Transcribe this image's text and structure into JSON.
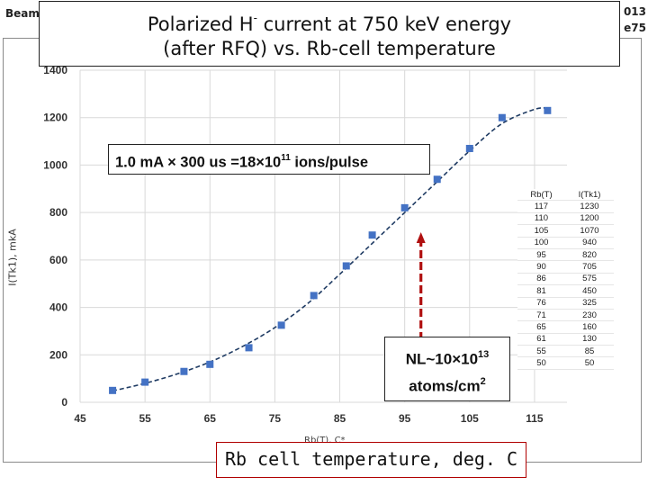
{
  "background": {
    "left_text": "Beam",
    "right_text_1": "013",
    "right_text_2": "e75"
  },
  "title": {
    "line1_pre": "Polarized H",
    "line1_sup": "-",
    "line1_post": " current at 750 keV energy",
    "line2": "(after RFQ) vs. Rb-cell temperature"
  },
  "annotations": {
    "pulse_pre": "1.0 mA × 300 us =18×10",
    "pulse_sup": "11",
    "pulse_post": " ions/pulse",
    "nl_line1_pre": "NL~10×10",
    "nl_line1_sup": "13",
    "nl_line2_pre": "atoms/cm",
    "nl_line2_sup": "2",
    "xlabel": "Rb cell temperature, deg. C",
    "xlabel_original": "Rb(T), C*"
  },
  "table": {
    "headers": [
      "Rb(T)",
      "I(Tk1)"
    ],
    "rows": [
      [
        "117",
        "1230"
      ],
      [
        "110",
        "1200"
      ],
      [
        "105",
        "1070"
      ],
      [
        "100",
        "940"
      ],
      [
        "95",
        "820"
      ],
      [
        "90",
        "705"
      ],
      [
        "86",
        "575"
      ],
      [
        "81",
        "450"
      ],
      [
        "76",
        "325"
      ],
      [
        "71",
        "230"
      ],
      [
        "65",
        "160"
      ],
      [
        "61",
        "130"
      ],
      [
        "55",
        "85"
      ],
      [
        "50",
        "50"
      ]
    ]
  },
  "colors": {
    "marker": "#4472c4",
    "fit_line": "#1f3b63",
    "grid": "#d9d9d9",
    "arrow": "#b01010"
  },
  "chart_data": {
    "type": "scatter",
    "title": "Polarized H- current at 750 keV energy (after RFQ) vs. Rb-cell temperature",
    "xlabel": "Rb cell temperature, deg. C",
    "ylabel": "I(Tk1), mkA",
    "xlim": [
      45,
      120
    ],
    "ylim": [
      0,
      1400
    ],
    "xticks": [
      45,
      55,
      65,
      75,
      85,
      95,
      105,
      115
    ],
    "yticks": [
      0,
      200,
      400,
      600,
      800,
      1000,
      1200,
      1400
    ],
    "grid": true,
    "series": [
      {
        "name": "I(Tk1)",
        "x": [
          50,
          55,
          61,
          65,
          71,
          76,
          81,
          86,
          90,
          95,
          100,
          105,
          110,
          117
        ],
        "y": [
          50,
          85,
          130,
          160,
          230,
          325,
          450,
          575,
          705,
          820,
          940,
          1070,
          1200,
          1230
        ]
      }
    ],
    "fit": {
      "name": "trend (dashed)",
      "x": [
        50,
        55,
        60,
        65,
        70,
        75,
        80,
        85,
        90,
        95,
        100,
        105,
        110,
        115,
        117
      ],
      "y": [
        48,
        80,
        120,
        170,
        235,
        315,
        415,
        540,
        670,
        800,
        930,
        1060,
        1175,
        1235,
        1240
      ]
    },
    "arrow_at_x": 97.5
  }
}
